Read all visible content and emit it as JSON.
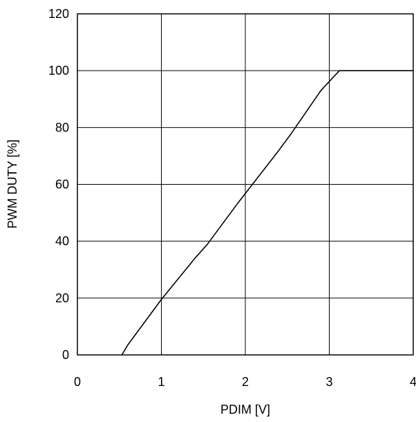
{
  "chart_data": {
    "type": "line",
    "title": "",
    "xlabel": "PDIM [V]",
    "ylabel": "PWM DUTY [%]",
    "xlim": [
      0,
      4
    ],
    "ylim": [
      0,
      120
    ],
    "xticks": [
      0,
      1,
      2,
      3,
      4
    ],
    "yticks": [
      0,
      20,
      40,
      60,
      80,
      100,
      120
    ],
    "xtick_labels": [
      "0",
      "1",
      "2",
      "3",
      "4"
    ],
    "ytick_labels": [
      "0",
      "20",
      "40",
      "60",
      "80",
      "100",
      "120"
    ],
    "grid": true,
    "legend": "none",
    "colors": {
      "line": "#000000",
      "grid": "#000000",
      "background": "#ffffff"
    },
    "series": [
      {
        "x": [
          0.53,
          0.6,
          1.0,
          1.4,
          1.55,
          1.9,
          2.4,
          2.55,
          2.9,
          3.12,
          4.0
        ],
        "y": [
          0,
          3.5,
          19.5,
          34,
          39,
          53,
          72,
          78,
          93,
          100,
          100
        ]
      }
    ]
  }
}
